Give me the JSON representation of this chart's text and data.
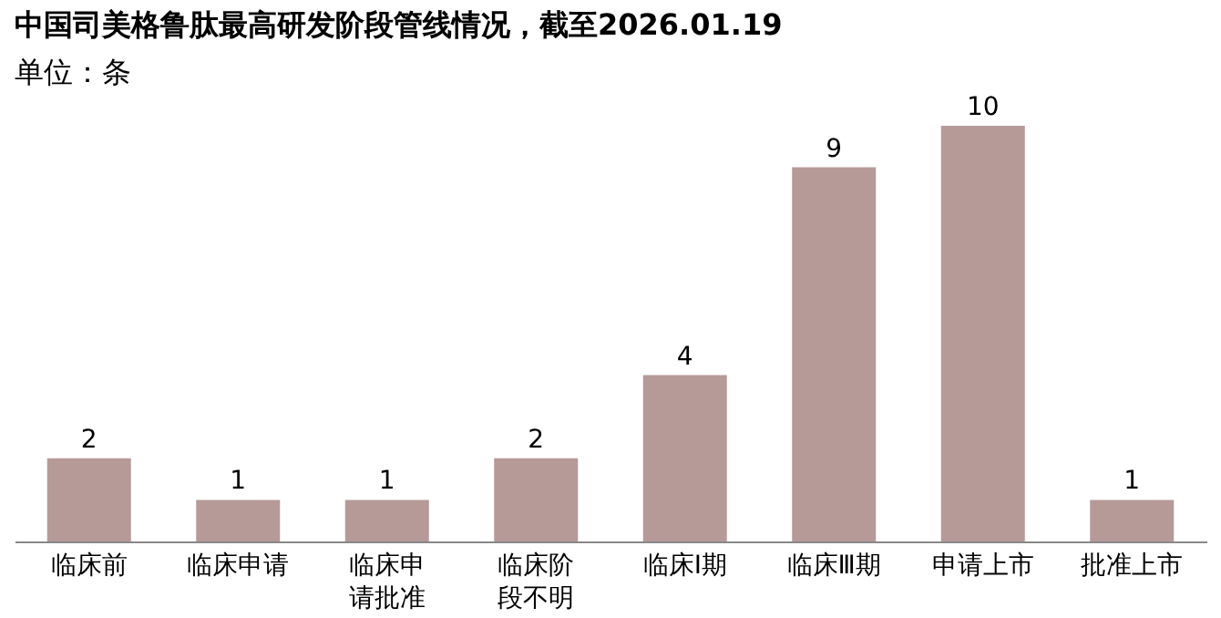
{
  "chart_data": {
    "type": "bar",
    "title": "中国司美格鲁肽最高研发阶段管线情况，截至2026.01.19",
    "subtitle": "单位：条",
    "categories": [
      "临床前",
      "临床申请",
      "临床申请批准",
      "临床阶段不明",
      "临床Ⅰ期",
      "临床Ⅲ期",
      "申请上市",
      "批准上市"
    ],
    "values": [
      2,
      1,
      1,
      2,
      4,
      9,
      10,
      1
    ],
    "color": "#b59a98",
    "data_labels": true,
    "grid": false,
    "tick_labels": "x"
  }
}
